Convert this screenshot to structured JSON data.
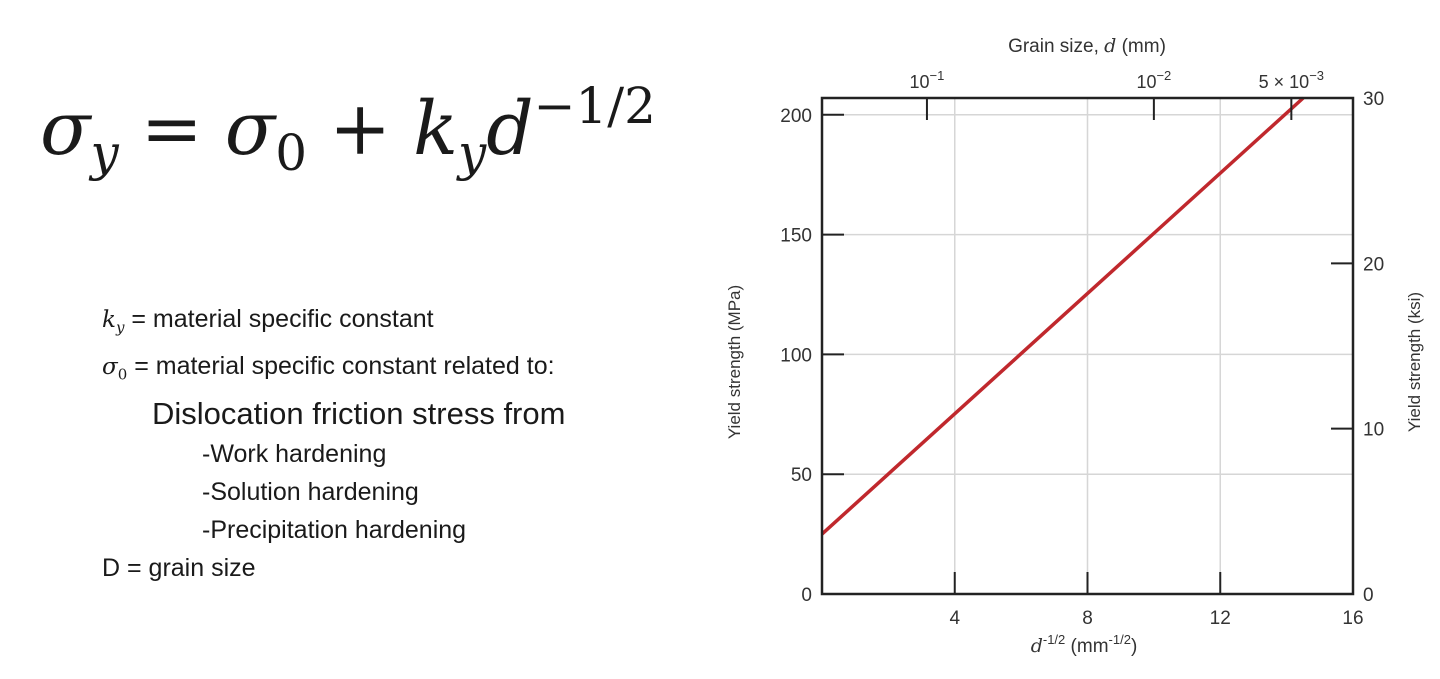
{
  "formula": {
    "sigma_y_base": "σ",
    "sigma_y_sub": "y",
    "equals": "=",
    "sigma_0_base": "σ",
    "sigma_0_sub": "0",
    "plus": "+",
    "k_base": "k",
    "k_sub": "y",
    "d_base": "d",
    "d_exp": "−1/2"
  },
  "notes": {
    "ky_symbol": "k",
    "ky_sub": "y",
    "ky_text": " = material specific constant",
    "sigma0_symbol": "σ",
    "sigma0_sub": "0",
    "sigma0_text": " = material specific constant related to:",
    "friction": "Dislocation friction stress from",
    "items": [
      "-Work hardening",
      "-Solution hardening",
      "-Precipitation hardening"
    ],
    "d_text": "D = grain size"
  },
  "chart_data": {
    "type": "line",
    "xlabel": "d-1/2 (mm-1/2)",
    "xlabel_parts": {
      "d": "d",
      "d_exp": "-1/2",
      "unit": " (mm",
      "unit_exp": "-1/2",
      "close": ")"
    },
    "ylabel": "Yield strength (MPa)",
    "y2label": "Yield strength (ksi)",
    "top_axis_label": "Grain size, d (mm)",
    "top_axis_parts": {
      "prefix": "Grain size, ",
      "d": "d",
      "suffix": " (mm)"
    },
    "xlim": [
      0,
      16
    ],
    "ylim": [
      0,
      207
    ],
    "y2lim": [
      0,
      30
    ],
    "xticks": [
      4,
      8,
      12,
      16
    ],
    "yticks": [
      0,
      50,
      100,
      150,
      200
    ],
    "y2ticks": [
      0,
      10,
      20,
      30
    ],
    "top_ticks": [
      {
        "label_base": "10",
        "label_exp": "−1",
        "value_mm": 0.1
      },
      {
        "label_base": "10",
        "label_exp": "−2",
        "value_mm": 0.01
      },
      {
        "label_base": "5 × 10",
        "label_exp": "−3",
        "value_mm": 0.005
      }
    ],
    "grid": true,
    "series": [
      {
        "color": "#c0282d",
        "x": [
          0,
          14.5
        ],
        "y": [
          25,
          207
        ]
      }
    ]
  }
}
